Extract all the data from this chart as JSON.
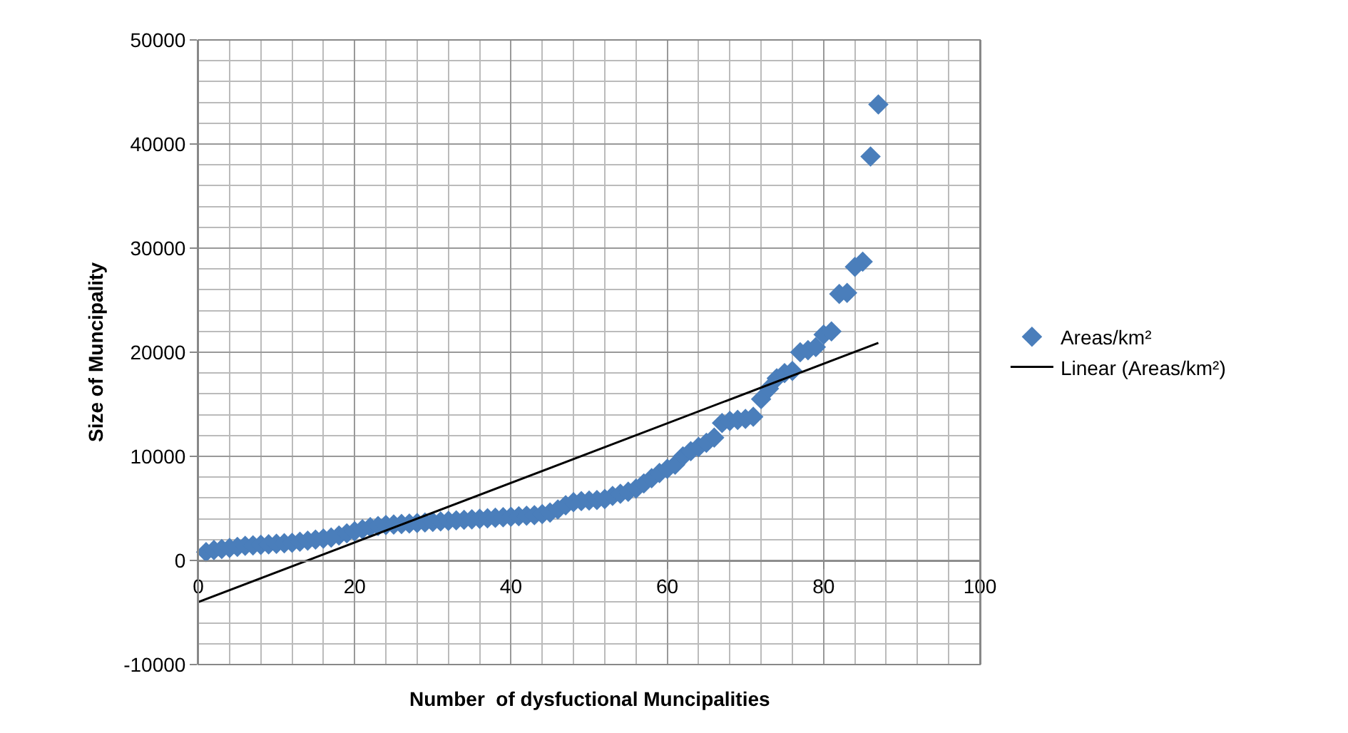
{
  "chart_data": {
    "type": "scatter",
    "xlabel": "Number  of dysfuctional Muncipalities",
    "ylabel": "Size of Muncipality",
    "x": [
      1,
      2,
      3,
      4,
      5,
      6,
      7,
      8,
      9,
      10,
      11,
      12,
      13,
      14,
      15,
      16,
      17,
      18,
      19,
      20,
      21,
      22,
      23,
      24,
      25,
      26,
      27,
      28,
      29,
      30,
      31,
      32,
      33,
      34,
      35,
      36,
      37,
      38,
      39,
      40,
      41,
      42,
      43,
      44,
      45,
      46,
      47,
      48,
      49,
      50,
      51,
      52,
      53,
      54,
      55,
      56,
      57,
      58,
      59,
      60,
      61,
      62,
      63,
      64,
      65,
      66,
      67,
      68,
      69,
      70,
      71,
      72,
      73,
      74,
      75,
      76,
      77,
      78,
      79,
      80,
      81,
      82,
      83,
      84,
      85,
      86,
      87
    ],
    "series": [
      {
        "name": "Areas/km²",
        "color": "#4a7ebb",
        "marker": "diamond",
        "values": [
          800,
          1000,
          1100,
          1200,
          1300,
          1400,
          1450,
          1500,
          1550,
          1600,
          1650,
          1700,
          1800,
          1900,
          2000,
          2100,
          2200,
          2400,
          2600,
          2800,
          3000,
          3200,
          3300,
          3400,
          3450,
          3500,
          3550,
          3600,
          3650,
          3700,
          3750,
          3800,
          3850,
          3900,
          3950,
          4000,
          4050,
          4100,
          4150,
          4200,
          4250,
          4300,
          4350,
          4450,
          4600,
          4900,
          5300,
          5600,
          5700,
          5750,
          5800,
          5900,
          6200,
          6400,
          6600,
          6900,
          7400,
          7900,
          8400,
          8800,
          9200,
          10000,
          10500,
          10900,
          11300,
          11800,
          13200,
          13400,
          13500,
          13600,
          13800,
          15500,
          16500,
          17500,
          18000,
          18200,
          20000,
          20200,
          20500,
          21700,
          22000,
          25600,
          25700,
          28200,
          28700,
          38800,
          43800
        ]
      },
      {
        "name": "Linear (Areas/km²)",
        "type": "line",
        "color": "#000000",
        "marker": "none",
        "x": [
          0,
          87
        ],
        "values": [
          -4000,
          20900
        ]
      }
    ],
    "xlim": [
      0,
      100
    ],
    "xticks": [
      0,
      20,
      40,
      60,
      80,
      100
    ],
    "ylim": [
      -10000,
      50000
    ],
    "yticks": [
      -10000,
      0,
      10000,
      20000,
      30000,
      40000,
      50000
    ],
    "grid": true,
    "legend": "right"
  }
}
